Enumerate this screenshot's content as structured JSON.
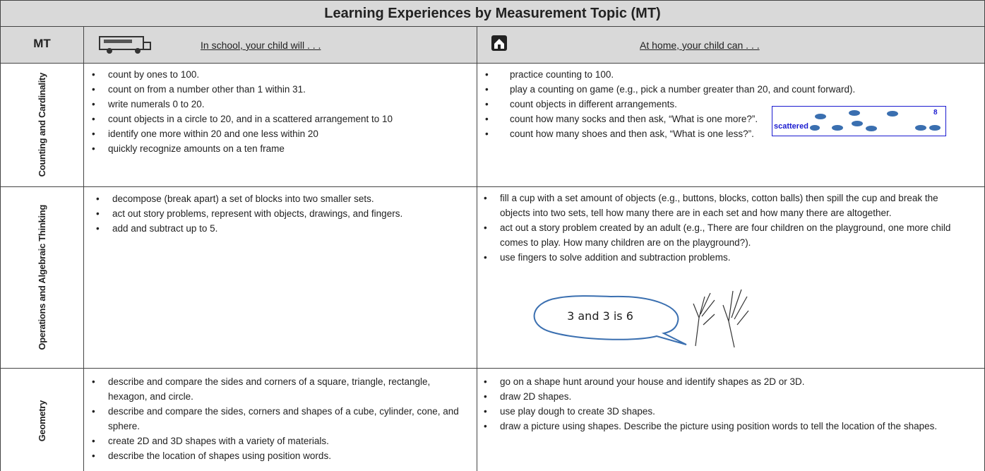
{
  "header": {
    "title": "Learning Experiences by  Measurement Topic (MT)",
    "col_topic": "MT",
    "col_school": "In school, your child will . . .",
    "col_home": "At home, your child can . . ."
  },
  "rows": [
    {
      "topic": "Counting and Cardinality",
      "school": [
        "count by ones to 100.",
        "count on from a number other than 1 within 31.",
        "write numerals 0 to 20.",
        "count objects in a circle to 20, and in a  scattered arrangement to 10",
        "identify one more within 20 and one less within 20",
        "quickly recognize amounts on a ten frame"
      ],
      "home": [
        "practice counting to 100.",
        "play a counting on game (e.g., pick a number greater than 20, and count forward).",
        "count objects in different arrangements.",
        "count how many socks and then ask, “What is one more?”.",
        "count how many shoes and then ask, “What is one less?”."
      ],
      "figure": {
        "label": "scattered",
        "count": "8"
      }
    },
    {
      "topic": "Operations and Algebraic Thinking",
      "school": [
        "decompose (break apart) a set of blocks into two smaller sets.",
        "act out story problems, represent with objects, drawings, and fingers.",
        "add and subtract up to 5."
      ],
      "home": [
        "fill a cup with a set amount of objects (e.g., buttons, blocks, cotton balls) then spill the cup and break the objects into two sets, tell how many there are in each set and how many there are altogether.",
        "act out a story problem created by an adult (e.g., There are four children on the playground, one more child comes to play.  How many children are on the playground?).",
        "use fingers to solve addition and subtraction problems."
      ],
      "figure": {
        "speech": "3 and 3 is 6"
      }
    },
    {
      "topic": "Geometry",
      "school": [
        "describe and compare the sides and corners of a square, triangle, rectangle, hexagon, and circle.",
        "describe and compare the sides, corners and shapes of a cube, cylinder, cone, and sphere.",
        "create 2D and 3D shapes with a variety of materials.",
        "describe the location of shapes using position words."
      ],
      "home": [
        "go on a shape hunt around your house and identify shapes as 2D or 3D.",
        "draw 2D shapes.",
        "use play dough to create 3D shapes.",
        "draw a picture using shapes. Describe the picture using position words to tell the location of the shapes."
      ]
    }
  ]
}
